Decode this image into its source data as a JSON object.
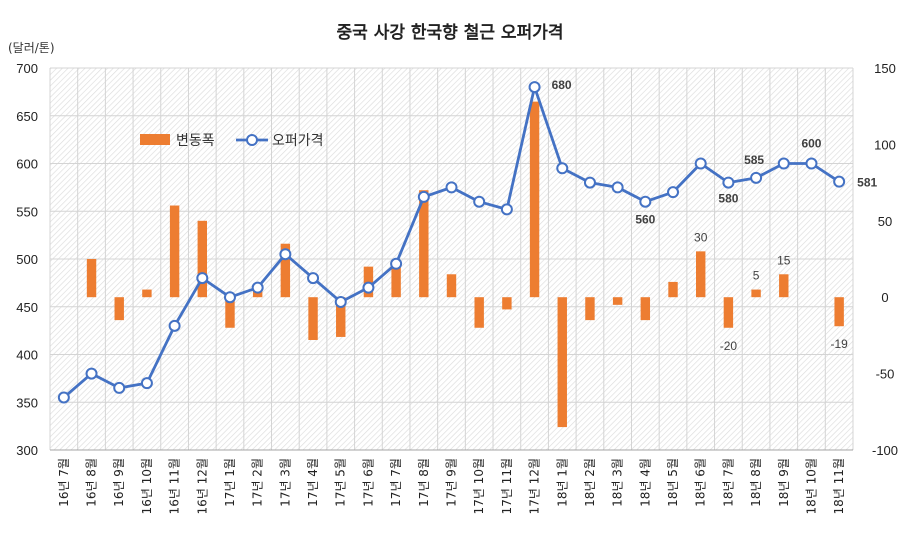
{
  "chart_data": {
    "type": "bar+line",
    "title": "중국 사강 한국향 철근 오퍼가격",
    "y_unit_label": "(달러/톤)",
    "left_axis": {
      "min": 300,
      "max": 700,
      "step": 50,
      "ticks": [
        "300",
        "350",
        "400",
        "450",
        "500",
        "550",
        "600",
        "650",
        "700"
      ]
    },
    "right_axis": {
      "min": -100,
      "max": 150,
      "step": 50,
      "ticks": [
        "-100",
        "-50",
        "0",
        "50",
        "100",
        "150"
      ]
    },
    "categories": [
      "16년 7월",
      "16년 8월",
      "16년 9월",
      "16년 10월",
      "16년 11월",
      "16년 12월",
      "17년 1월",
      "17년 2월",
      "17년 3월",
      "17년 4월",
      "17년 5월",
      "17년 6월",
      "17년 7월",
      "17년 8월",
      "17년 9월",
      "17년 10월",
      "17년 11월",
      "17년 12월",
      "18년 1월",
      "18년 2월",
      "18년 3월",
      "18년 4월",
      "18년 5월",
      "18년 6월",
      "18년 7월",
      "18년 8월",
      "18년 9월",
      "18년 10월",
      "18년 11월"
    ],
    "series": [
      {
        "name": "변동폭",
        "axis": "right",
        "kind": "bar",
        "color": "#ED7D31",
        "values": [
          0,
          25,
          -15,
          5,
          60,
          50,
          -20,
          5,
          35,
          -28,
          -26,
          20,
          20,
          70,
          15,
          -20,
          -8,
          128,
          -85,
          -15,
          -5,
          -15,
          10,
          30,
          -20,
          5,
          15,
          0,
          -19
        ]
      },
      {
        "name": "오퍼가격",
        "axis": "left",
        "kind": "line",
        "color": "#4472C4",
        "values": [
          355,
          380,
          365,
          370,
          430,
          480,
          460,
          470,
          505,
          480,
          455,
          470,
          495,
          565,
          575,
          560,
          552,
          680,
          595,
          580,
          575,
          560,
          570,
          600,
          580,
          585,
          600,
          600,
          581
        ]
      }
    ],
    "line_data_labels": [
      {
        "index": 17,
        "text": "680"
      },
      {
        "index": 21,
        "text": "560"
      },
      {
        "index": 24,
        "text": "580"
      },
      {
        "index": 25,
        "text": "585"
      },
      {
        "index": 27,
        "text": "600"
      },
      {
        "index": 28,
        "text": "581"
      }
    ],
    "bar_data_labels": [
      {
        "index": 23,
        "text": "30"
      },
      {
        "index": 24,
        "text": "-20"
      },
      {
        "index": 25,
        "text": "5"
      },
      {
        "index": 26,
        "text": "15"
      },
      {
        "index": 28,
        "text": "-19"
      }
    ],
    "legend": {
      "position": "inside-top-left",
      "items": [
        "변동폭",
        "오퍼가격"
      ]
    },
    "gridlines": true
  }
}
